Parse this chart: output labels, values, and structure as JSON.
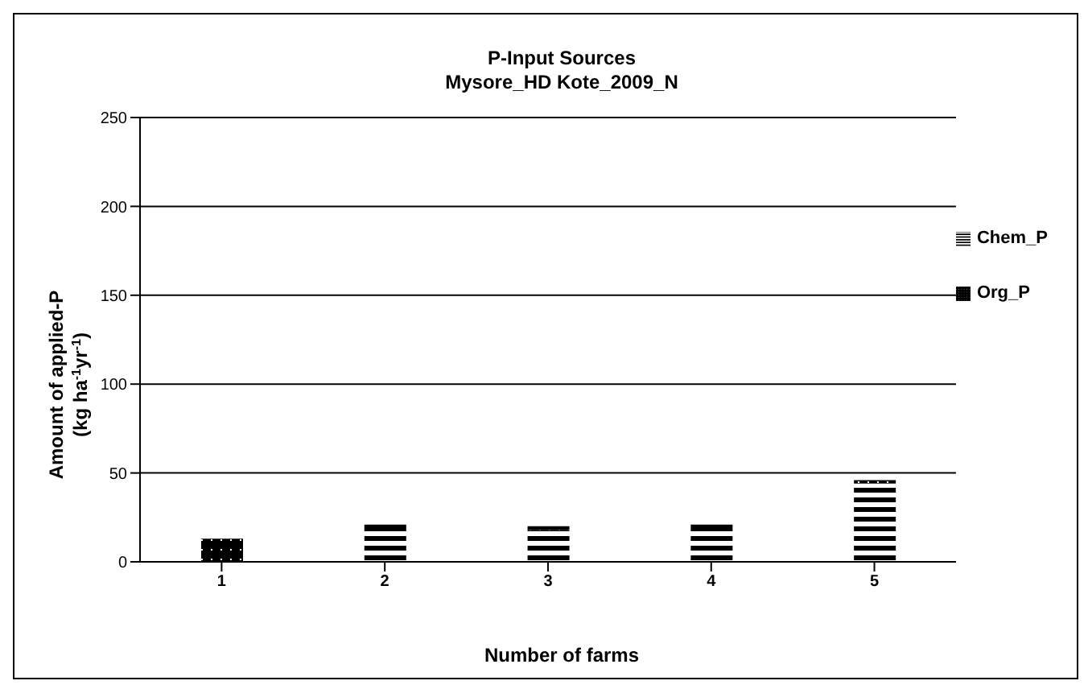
{
  "chart_data": {
    "type": "bar",
    "title": "P-Input Sources\nMysore_HD Kote_2009_N",
    "xlabel": "Number of farms",
    "ylabel": "Amount of applied-P\n(kg ha$^{-1}$yr$^{-1}$)",
    "categories": [
      "1",
      "2",
      "3",
      "4",
      "5"
    ],
    "stacked": true,
    "series": [
      {
        "name": "Chem_P",
        "color": "#000000",
        "values": [
          0,
          19,
          18,
          19,
          44
        ]
      },
      {
        "name": "Org_P",
        "color": "#000000",
        "values": [
          13,
          2,
          2,
          2,
          2
        ]
      }
    ],
    "ylim": [
      0,
      250
    ],
    "yticks": [
      0,
      50,
      100,
      150,
      200,
      250
    ],
    "grid": "y",
    "legend": "right"
  }
}
